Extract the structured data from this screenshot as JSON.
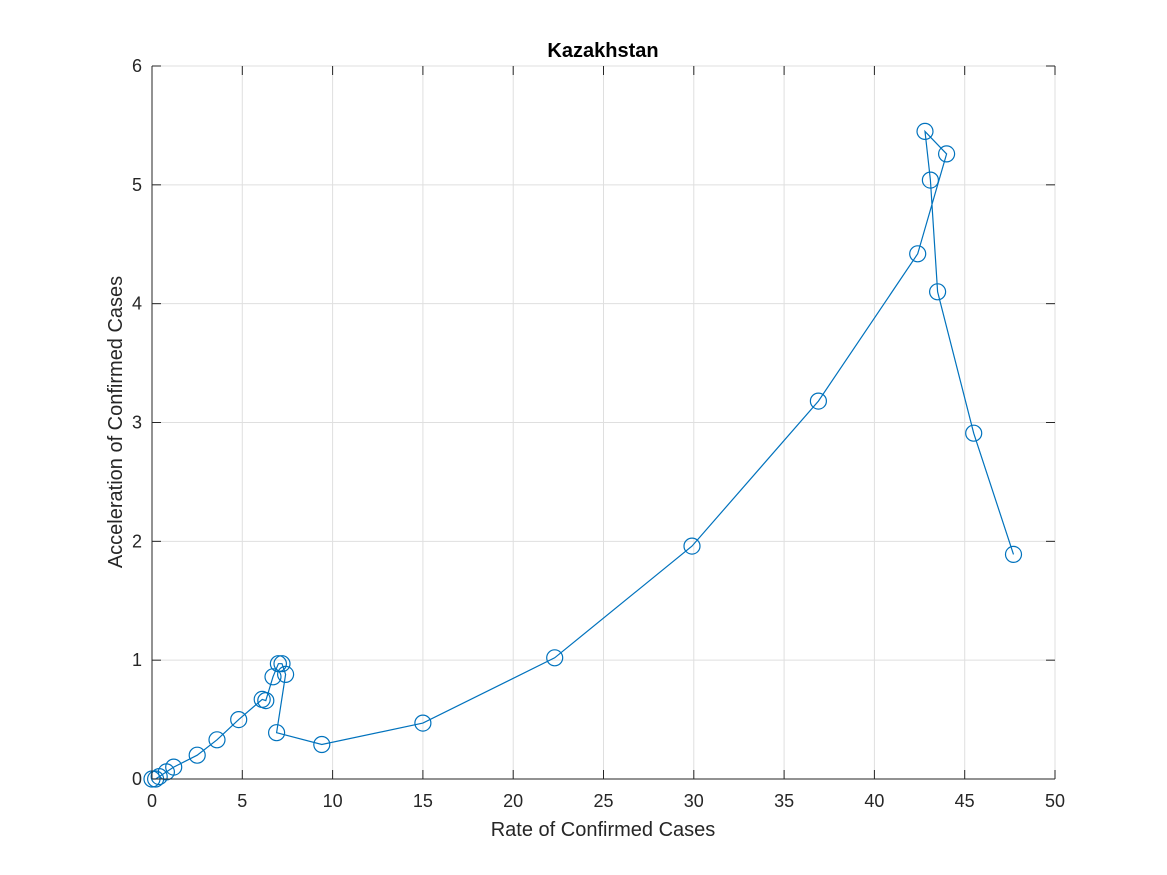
{
  "chart_data": {
    "type": "line",
    "title": "Kazakhstan",
    "xlabel": "Rate of Confirmed Cases",
    "ylabel": "Acceleration of Confirmed Cases",
    "xlim": [
      0,
      50
    ],
    "ylim": [
      0,
      6
    ],
    "xticks": [
      0,
      5,
      10,
      15,
      20,
      25,
      30,
      35,
      40,
      45,
      50
    ],
    "yticks": [
      0,
      1,
      2,
      3,
      4,
      5,
      6
    ],
    "xtick_labels": [
      "0",
      "5",
      "10",
      "15",
      "20",
      "25",
      "30",
      "35",
      "40",
      "45",
      "50"
    ],
    "ytick_labels": [
      "0",
      "1",
      "2",
      "3",
      "4",
      "5",
      "6"
    ],
    "grid": true,
    "marker": "circle",
    "color": "#0072bd",
    "series": [
      {
        "x": [
          0.0,
          0.2,
          0.4,
          0.8,
          1.2,
          2.5,
          3.6,
          4.8,
          6.1,
          6.3,
          6.7,
          7.0,
          7.2,
          7.4,
          6.9,
          9.4,
          15.0,
          22.3,
          29.9,
          36.9,
          42.4,
          44.0,
          42.8,
          43.1,
          43.5,
          45.5,
          47.7
        ],
        "y": [
          0.0,
          0.0,
          0.02,
          0.06,
          0.1,
          0.2,
          0.33,
          0.5,
          0.67,
          0.66,
          0.86,
          0.97,
          0.97,
          0.88,
          0.39,
          0.29,
          0.47,
          1.02,
          1.96,
          3.18,
          4.42,
          5.26,
          5.45,
          5.04,
          4.1,
          2.91,
          1.89
        ]
      }
    ]
  }
}
